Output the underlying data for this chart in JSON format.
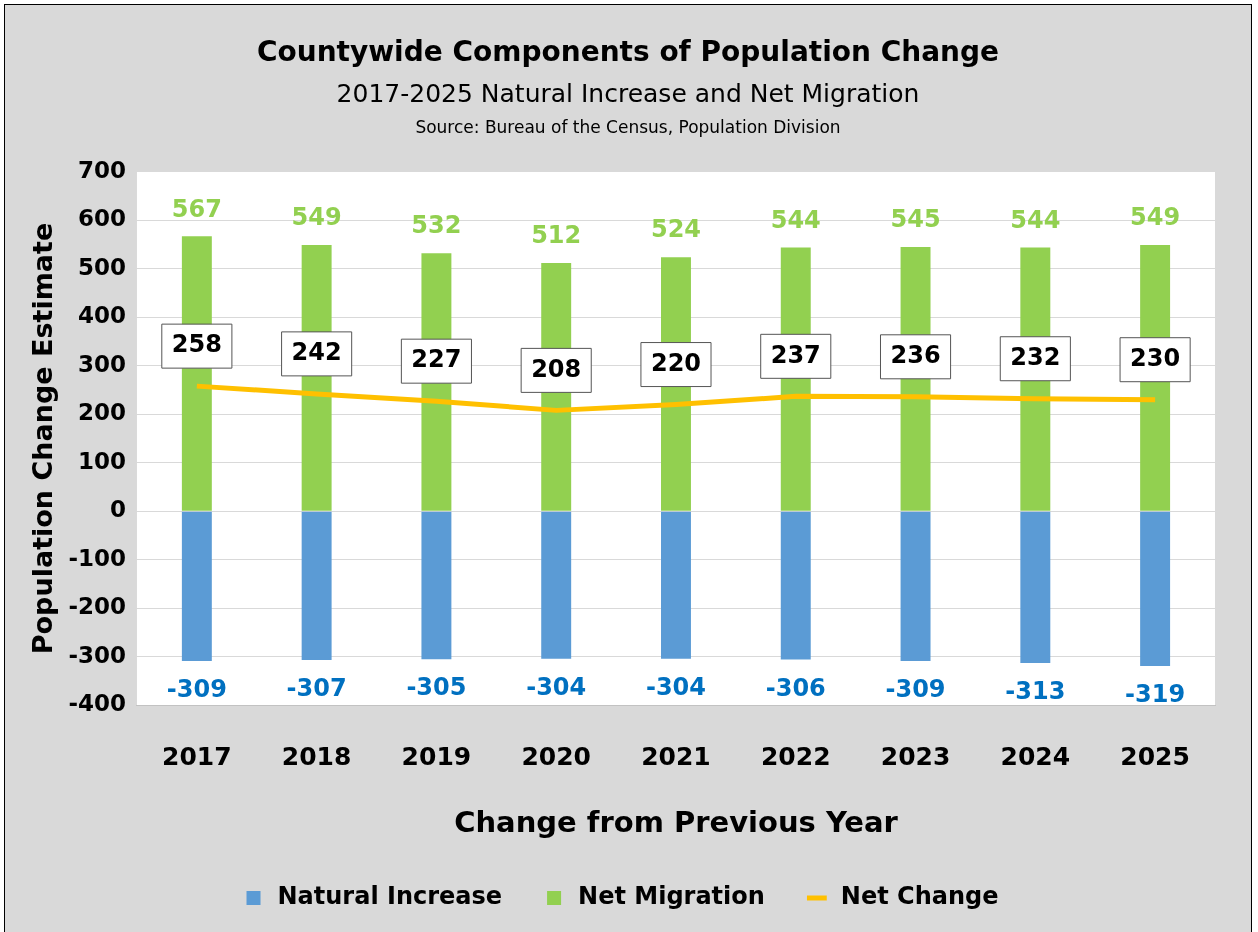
{
  "chart_data": {
    "type": "bar",
    "title": "Countywide Components of Population Change",
    "subtitle": "2017-2025 Natural Increase and Net Migration",
    "annotations": [
      "Source: Bureau of the Census, Population Division"
    ],
    "xlabel": "Change from Previous Year",
    "ylabel": "Population Change Estimate",
    "categories": [
      "2017",
      "2018",
      "2019",
      "2020",
      "2021",
      "2022",
      "2023",
      "2024",
      "2025"
    ],
    "series": [
      {
        "name": "Natural Increase",
        "color": "#5b9bd5",
        "values": [
          -309,
          -307,
          -305,
          -304,
          -304,
          -306,
          -309,
          -313,
          -319
        ]
      },
      {
        "name": "Net Migration",
        "color": "#92d050",
        "values": [
          567,
          549,
          532,
          512,
          524,
          544,
          545,
          544,
          549
        ]
      },
      {
        "name": "Net Change",
        "type": "line",
        "color": "#ffc000",
        "marker": "none",
        "line_style": "solid",
        "values": [
          258,
          242,
          227,
          208,
          220,
          237,
          236,
          232,
          230
        ]
      }
    ],
    "ylim": [
      -400,
      700
    ],
    "yticks": [
      -400,
      -300,
      -200,
      -100,
      0,
      100,
      200,
      300,
      400,
      500,
      600,
      700
    ],
    "grid": "y",
    "stacked": true,
    "legend": "bottom",
    "data_labels": true
  }
}
